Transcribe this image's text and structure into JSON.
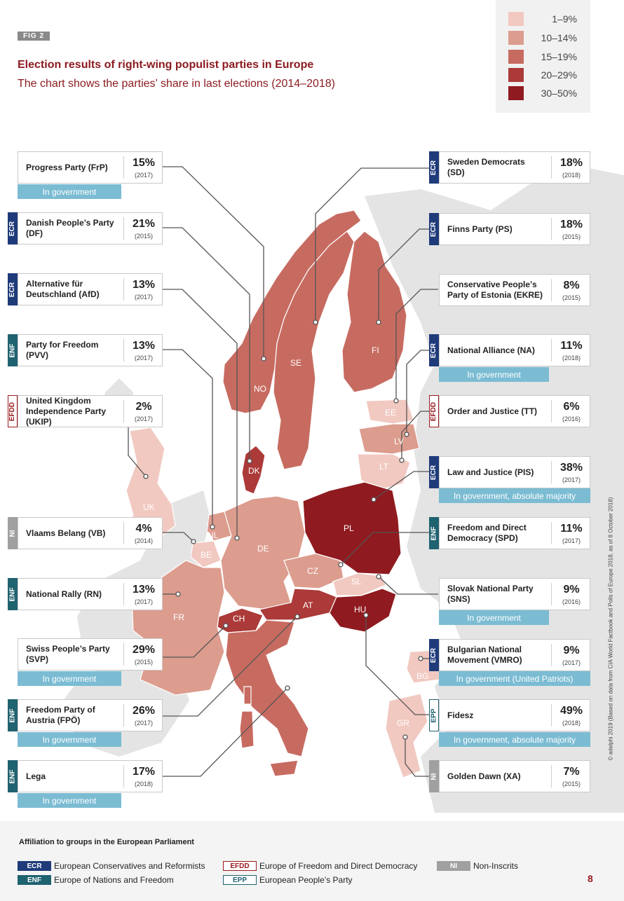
{
  "figure_label": "FIG 2",
  "title": "Election results of right-wing populist parties in Europe",
  "subtitle": "The chart shows the parties’ share in last elections (2014–2018)",
  "legend": [
    {
      "label": "1–9%",
      "color": "#f1c9c1"
    },
    {
      "label": "10–14%",
      "color": "#dc9c8e"
    },
    {
      "label": "15–19%",
      "color": "#c76b61"
    },
    {
      "label": "20–29%",
      "color": "#ab3a38"
    },
    {
      "label": "30–50%",
      "color": "#8f1a1f"
    }
  ],
  "countries": {
    "NO": "NO",
    "SE": "SE",
    "FI": "FI",
    "EE": "EE",
    "LV": "LV",
    "LT": "LT",
    "DK": "DK",
    "UK": "UK",
    "NL": "NL",
    "BE": "BE",
    "DE": "DE",
    "PL": "PL",
    "CZ": "CZ",
    "SL": "SL",
    "AT": "AT",
    "HU": "HU",
    "CH": "CH",
    "FR": "FR",
    "IT": "IT",
    "BG": "BG",
    "GR": "GR"
  },
  "parties": [
    {
      "name": "Progress Party (FrP)",
      "pct": "15%",
      "year": "(2017)",
      "group": "",
      "gov": "In government"
    },
    {
      "name": "Danish People’s Party (DF)",
      "pct": "21%",
      "year": "(2015)",
      "group": "ECR",
      "gov": ""
    },
    {
      "name": "Alternative für Deutschland (AfD)",
      "pct": "13%",
      "year": "(2017)",
      "group": "ECR",
      "gov": ""
    },
    {
      "name": "Party for Freedom (PVV)",
      "pct": "13%",
      "year": "(2017)",
      "group": "ENF",
      "gov": ""
    },
    {
      "name": "United Kingdom Independence Party (UKIP)",
      "pct": "2%",
      "year": "(2017)",
      "group": "EFDD",
      "gov": ""
    },
    {
      "name": "Vlaams Belang (VB)",
      "pct": "4%",
      "year": "(2014)",
      "group": "NI",
      "gov": ""
    },
    {
      "name": "National Rally (RN)",
      "pct": "13%",
      "year": "(2017)",
      "group": "ENF",
      "gov": ""
    },
    {
      "name": "Swiss People’s Party (SVP)",
      "pct": "29%",
      "year": "(2015)",
      "group": "",
      "gov": "In government"
    },
    {
      "name": "Freedom Party of Austria (FPÖ)",
      "pct": "26%",
      "year": "(2017)",
      "group": "ENF",
      "gov": "In government"
    },
    {
      "name": "Lega",
      "pct": "17%",
      "year": "(2018)",
      "group": "ENF",
      "gov": "In government"
    },
    {
      "name": "Sweden Democrats (SD)",
      "pct": "18%",
      "year": "(2018)",
      "group": "ECR",
      "gov": ""
    },
    {
      "name": "Finns Party (PS)",
      "pct": "18%",
      "year": "(2015)",
      "group": "ECR",
      "gov": ""
    },
    {
      "name": "Conservative People’s Party of Estonia (EKRE)",
      "pct": "8%",
      "year": "(2015)",
      "group": "",
      "gov": ""
    },
    {
      "name": "National Alliance (NA)",
      "pct": "11%",
      "year": "(2018)",
      "group": "ECR",
      "gov": "In government"
    },
    {
      "name": "Order and Justice (TT)",
      "pct": "6%",
      "year": "(2016)",
      "group": "EFDD",
      "gov": ""
    },
    {
      "name": "Law and Justice (PIS)",
      "pct": "38%",
      "year": "(2017)",
      "group": "ECR",
      "gov": "In government, absolute majority"
    },
    {
      "name": "Freedom and Direct Democracy (SPD)",
      "pct": "11%",
      "year": "(2017)",
      "group": "ENF",
      "gov": ""
    },
    {
      "name": "Slovak National Party (SNS)",
      "pct": "9%",
      "year": "(2016)",
      "group": "",
      "gov": "In government"
    },
    {
      "name": "Bulgarian National Movement (VMRO)",
      "pct": "9%",
      "year": "(2017)",
      "group": "ECR",
      "gov": "In government (United Patriots)"
    },
    {
      "name": "Fidesz",
      "pct": "49%",
      "year": "(2018)",
      "group": "EPP",
      "gov": "In government, absolute majority"
    },
    {
      "name": "Golden Dawn (XA)",
      "pct": "7%",
      "year": "(2015)",
      "group": "NI",
      "gov": ""
    }
  ],
  "affiliation_title": "Affiliation to groups in the European Parliament",
  "affiliations": [
    {
      "code": "ECR",
      "label": "European Conservatives and Reformists"
    },
    {
      "code": "ENF",
      "label": "Europe of Nations and Freedom"
    },
    {
      "code": "EFDD",
      "label": "Europe of Freedom and Direct Democracy"
    },
    {
      "code": "EPP",
      "label": "European People’s Party"
    },
    {
      "code": "NI",
      "label": "Non-Inscrits"
    }
  ],
  "credit": "© adelphi 2019 (Based on data from CIA World Factbook and Polls of Europe 2018, as of 8 October 2018)",
  "page_number": "8"
}
